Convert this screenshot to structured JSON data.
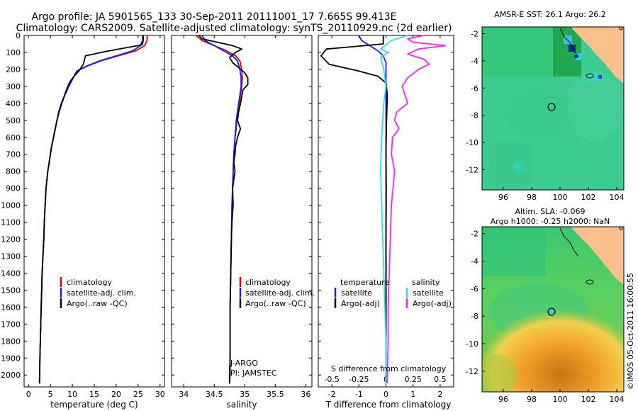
{
  "header": {
    "title": "Argo profile: JA 5901565_133 30-Sep-2011 20111001_17 7.665S 99.413E",
    "subtitle": "Climatology: CARS2009. Satellite-adjusted climatology: synTS_20110929.nc (2d earlier)"
  },
  "colors": {
    "climatology": "#e00000",
    "satellite": "#1a1aff",
    "argo": "#000000",
    "sat_salinity": "#29e0f0",
    "argo_salinity": "#ff20ff",
    "land": "#f9c08e"
  },
  "chart_data": [
    {
      "id": "temperature",
      "type": "line",
      "xlabel": "temperature (deg C)",
      "xlim": [
        -1,
        31
      ],
      "xticks": [
        "0",
        "5",
        "10",
        "15",
        "20",
        "25",
        "30"
      ],
      "xtick_values": [
        0,
        5,
        10,
        15,
        20,
        25,
        30
      ],
      "ylim": [
        0,
        2070
      ],
      "yticks": [
        "0",
        "100",
        "200",
        "300",
        "400",
        "500",
        "600",
        "700",
        "800",
        "900",
        "1000",
        "1100",
        "1200",
        "1300",
        "1400",
        "1500",
        "1600",
        "1700",
        "1800",
        "1900",
        "2000"
      ],
      "ytick_values": [
        0,
        100,
        200,
        300,
        400,
        500,
        600,
        700,
        800,
        900,
        1000,
        1100,
        1200,
        1300,
        1400,
        1500,
        1600,
        1700,
        1800,
        1900,
        2000
      ],
      "legend": {
        "position": "bottom-left",
        "entries": [
          "climatology",
          "satellite-adj. clim.",
          "Argo(..raw -QC)"
        ]
      },
      "series": [
        {
          "name": "climatology",
          "color_key": "climatology",
          "x": [
            27.1,
            27.0,
            26.5,
            24.5,
            20.5,
            16.5,
            13.5,
            11.0,
            10.2,
            9.2,
            8.3,
            7.6,
            7.0,
            6.5,
            6.1,
            5.7,
            5.3,
            5.0,
            4.7,
            4.4,
            4.2,
            4.0,
            3.8,
            3.6,
            3.5,
            3.3,
            3.1,
            3.0,
            2.9,
            2.8,
            2.7,
            2.6,
            2.5
          ],
          "y": [
            0,
            30,
            60,
            90,
            120,
            150,
            180,
            210,
            250,
            300,
            350,
            400,
            450,
            500,
            550,
            600,
            650,
            700,
            750,
            800,
            850,
            900,
            1000,
            1100,
            1200,
            1300,
            1400,
            1500,
            1600,
            1700,
            1800,
            1900,
            2050
          ]
        },
        {
          "name": "satellite-adj. clim.",
          "color_key": "satellite",
          "x": [
            26.0,
            26.0,
            25.5,
            23.8,
            20.0,
            16.2,
            13.3,
            11.0,
            10.2,
            9.2,
            8.3,
            7.6,
            7.0,
            6.5,
            6.1,
            5.7,
            5.3,
            5.0,
            4.7,
            4.4,
            4.2,
            4.0,
            3.8,
            3.6,
            3.5,
            3.3,
            3.1,
            3.0,
            2.9,
            2.8,
            2.7,
            2.6,
            2.5
          ],
          "y": [
            0,
            30,
            60,
            90,
            120,
            150,
            180,
            210,
            250,
            300,
            350,
            400,
            450,
            500,
            550,
            600,
            650,
            700,
            750,
            800,
            850,
            900,
            1000,
            1100,
            1200,
            1300,
            1400,
            1500,
            1600,
            1700,
            1800,
            1900,
            2050
          ]
        },
        {
          "name": "Argo(..raw -QC)",
          "color_key": "argo",
          "x": [
            26.2,
            26.1,
            25.9,
            17.5,
            13.0,
            12.5,
            11.5,
            10.4,
            9.5,
            8.8,
            8.1,
            7.5,
            6.9,
            6.5,
            6.1,
            5.7,
            5.3,
            5.0,
            4.7,
            4.4,
            4.2,
            4.0,
            3.8,
            3.6,
            3.5,
            3.3,
            3.1,
            3.0,
            2.9,
            2.8,
            2.7,
            2.6,
            2.5
          ],
          "y": [
            0,
            40,
            55,
            95,
            120,
            170,
            210,
            240,
            270,
            310,
            360,
            400,
            450,
            500,
            550,
            600,
            650,
            700,
            750,
            800,
            850,
            900,
            1000,
            1100,
            1200,
            1300,
            1400,
            1500,
            1600,
            1700,
            1800,
            1900,
            2050
          ]
        }
      ]
    },
    {
      "id": "salinity",
      "type": "line",
      "xlabel": "salinity",
      "xlim": [
        33.8,
        36.1
      ],
      "xticks": [
        "34",
        "34.5",
        "35",
        "35.5",
        "36"
      ],
      "xtick_values": [
        34,
        34.5,
        35,
        35.5,
        36
      ],
      "ylim": [
        0,
        2070
      ],
      "legend": {
        "position": "bottom-right",
        "entries": [
          "climatology",
          "satellite-adj. clim.",
          "Argo(..raw -QC)"
        ]
      },
      "annotations": [
        "J-ARGO",
        "PI: JAMSTEC"
      ],
      "series": [
        {
          "name": "climatology",
          "color_key": "climatology",
          "x": [
            34.2,
            34.3,
            34.5,
            34.7,
            34.85,
            34.92,
            34.95,
            34.96,
            34.95,
            34.93,
            34.91,
            34.89,
            34.87,
            34.86,
            34.84,
            34.83,
            34.82,
            34.81,
            34.8,
            34.79,
            34.78,
            34.77,
            34.76,
            34.76,
            34.76,
            34.75,
            34.75
          ],
          "y": [
            0,
            30,
            60,
            90,
            120,
            150,
            200,
            250,
            300,
            350,
            400,
            450,
            500,
            550,
            600,
            650,
            700,
            800,
            900,
            1000,
            1200,
            1400,
            1600,
            1800,
            1900,
            2000,
            2050
          ]
        },
        {
          "name": "satellite-adj. clim.",
          "color_key": "satellite",
          "x": [
            34.3,
            34.35,
            34.5,
            34.65,
            34.8,
            34.88,
            34.92,
            34.94,
            34.94,
            34.92,
            34.9,
            34.88,
            34.86,
            34.85,
            34.84,
            34.83,
            34.82,
            34.81,
            34.8,
            34.79,
            34.78,
            34.77,
            34.76,
            34.76,
            34.76,
            34.75,
            34.75
          ],
          "y": [
            0,
            30,
            60,
            90,
            120,
            150,
            200,
            250,
            300,
            350,
            400,
            450,
            500,
            550,
            600,
            650,
            700,
            800,
            900,
            1000,
            1200,
            1400,
            1600,
            1800,
            1900,
            2000,
            2050
          ]
        },
        {
          "name": "Argo(..raw -QC)",
          "color_key": "argo",
          "x": [
            34.25,
            34.3,
            34.55,
            34.8,
            34.95,
            34.85,
            34.75,
            34.8,
            34.9,
            35.0,
            35.05,
            35.05,
            34.97,
            34.95,
            34.93,
            34.9,
            34.88,
            34.93,
            34.88,
            34.85,
            34.84,
            34.82,
            34.84,
            34.82,
            34.8,
            34.81,
            34.79,
            34.78,
            34.77,
            34.76,
            34.76,
            34.76,
            34.75
          ],
          "y": [
            0,
            20,
            40,
            60,
            80,
            100,
            130,
            160,
            190,
            220,
            250,
            290,
            320,
            360,
            400,
            450,
            500,
            550,
            600,
            650,
            700,
            750,
            800,
            850,
            900,
            1000,
            1100,
            1200,
            1400,
            1600,
            1800,
            2000,
            2050
          ]
        }
      ]
    },
    {
      "id": "difference",
      "type": "line",
      "xlabel": "T difference from climatology",
      "xlim": [
        -2.5,
        2.5
      ],
      "xticks": [
        "-2",
        "-1",
        "0",
        "1",
        "2"
      ],
      "xtick_values": [
        -2,
        -1,
        0,
        1,
        2
      ],
      "top_label": "S difference from climatology",
      "top_ticks": [
        "-0.5",
        "-0.25",
        "0",
        "0.25",
        "0.5"
      ],
      "top_tick_values": [
        -0.5,
        -0.25,
        0,
        0.25,
        0.5
      ],
      "ylim": [
        0,
        2070
      ],
      "legend": {
        "position": "bottom",
        "temperature_title": "temperature",
        "salinity_title": "salinity",
        "entries": [
          "satellite",
          "Argo(-adj)",
          "satellite",
          "Argo(-adj)"
        ]
      },
      "series": [
        {
          "name": "satellite",
          "group": "temperature",
          "color_key": "satellite",
          "x": [
            -1.0,
            -0.9,
            -0.6,
            -0.3,
            -0.1,
            0,
            0,
            0,
            0,
            0,
            0,
            0
          ],
          "y": [
            0,
            30,
            60,
            90,
            120,
            160,
            200,
            400,
            800,
            1200,
            1600,
            2050
          ]
        },
        {
          "name": "Argo(-adj)",
          "group": "temperature",
          "color_key": "argo",
          "x": [
            -0.1,
            -0.1,
            -2.2,
            -2.4,
            -2.1,
            -1.0,
            -0.3,
            0,
            0.05,
            0.02,
            0,
            0.01,
            0,
            0,
            0
          ],
          "y": [
            0,
            50,
            80,
            120,
            170,
            210,
            240,
            280,
            350,
            500,
            700,
            900,
            1200,
            1600,
            2050
          ]
        },
        {
          "name": "satellite",
          "group": "salinity",
          "color_key": "sat_salinity",
          "x": [
            0.2,
            0.05,
            -0.05,
            0.02,
            -0.05,
            -0.02,
            0,
            -0.02,
            -0.04,
            -0.05,
            -0.04,
            -0.03,
            -0.02,
            -0.01,
            0,
            0,
            0
          ],
          "y": [
            0,
            30,
            80,
            100,
            130,
            200,
            300,
            400,
            600,
            800,
            1000,
            1200,
            1400,
            1600,
            1800,
            1900,
            2050
          ]
        },
        {
          "name": "Argo(-adj)",
          "group": "salinity",
          "color_key": "argo_salinity",
          "x": [
            0.35,
            0.2,
            0.25,
            0.55,
            0.3,
            0.2,
            0.35,
            0.4,
            0.3,
            0.2,
            0.15,
            0.2,
            0.1,
            0.08,
            0.12,
            0.06,
            0.05,
            0.08,
            0.05,
            0.04,
            0.03,
            0.02,
            0.02,
            0.01
          ],
          "y": [
            0,
            20,
            40,
            60,
            80,
            110,
            140,
            170,
            200,
            250,
            300,
            400,
            450,
            500,
            550,
            600,
            700,
            800,
            1000,
            1200,
            1400,
            1600,
            1800,
            2050
          ]
        }
      ]
    }
  ],
  "maps": [
    {
      "id": "sst-map",
      "title": "AMSR-E SST: 26.1  Argo: 26.2",
      "xticks": [
        "96",
        "98",
        "100",
        "102",
        "104"
      ],
      "yticks": [
        "-2",
        "-4",
        "-6",
        "-8",
        "-10",
        "-12"
      ],
      "argo_position": {
        "lon": 99.413,
        "lat": -7.665
      },
      "lon_range": [
        94.5,
        104.5
      ],
      "lat_range": [
        -13.5,
        -1.5
      ]
    },
    {
      "id": "sla-map",
      "title_lines": [
        "Altim. SLA: -0.069",
        "Argo h1000: -0.25 h2000: NaN"
      ],
      "xticks": [
        "96",
        "98",
        "100",
        "102",
        "104"
      ],
      "yticks": [
        "-2",
        "-4",
        "-6",
        "-8",
        "-10",
        "-12"
      ],
      "argo_position": {
        "lon": 99.413,
        "lat": -7.665
      },
      "lon_range": [
        94.5,
        104.5
      ],
      "lat_range": [
        -13.5,
        -1.5
      ]
    }
  ],
  "footer": {
    "credit": "©IMOS 05-Oct-2011 16:00:55"
  }
}
